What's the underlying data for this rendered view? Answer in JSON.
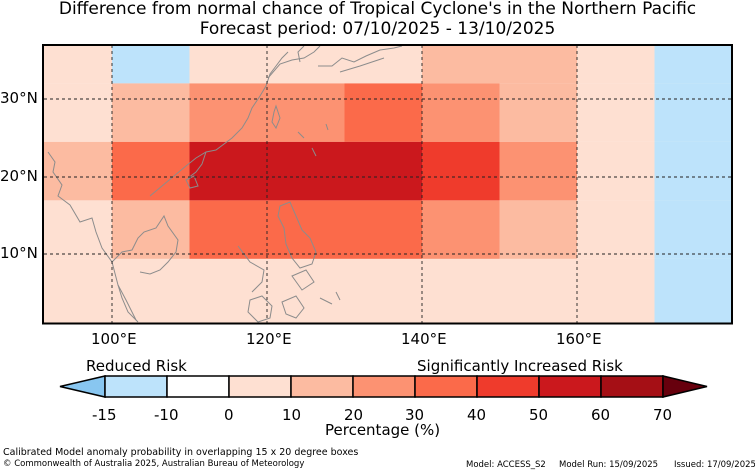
{
  "title": "Difference from normal chance of Tropical Cyclone's in the Northern Pacific",
  "subtitle": "Forecast period: 07/10/2025 - 13/10/2025",
  "axes": {
    "lon_ticks": [
      "100°E",
      "120°E",
      "140°E",
      "160°E"
    ],
    "lat_ticks": [
      "30°N",
      "20°N",
      "10°N"
    ]
  },
  "colorbar": {
    "label_left": "Reduced Risk",
    "label_right": "Significantly Increased Risk",
    "ticks": [
      "-15",
      "-10",
      "0",
      "10",
      "20",
      "30",
      "40",
      "50",
      "60",
      "70"
    ],
    "xlabel": "Percentage (%)",
    "colors": [
      "#bde3fb",
      "#ffffff",
      "#fee0d2",
      "#fcbba1",
      "#fc9272",
      "#fb6a4a",
      "#ef3b2c",
      "#cb181d",
      "#a50f15"
    ],
    "under_color": "#88c6f0",
    "over_color": "#67000d"
  },
  "footer": {
    "description": "Calibrated Model anomaly probability in overlapping 15 x 20 degree boxes",
    "copyright": "© Commonwealth of Australia 2025, Australian Bureau of Meteorology",
    "model": "Model: ACCESS_S2",
    "run": "Model Run: 15/09/2025",
    "issued": "Issued: 17/09/2025"
  },
  "map_grid": {
    "description": "anomaly value (%) per map cell; lon edges / lat edges in degrees",
    "lon_edges": [
      91,
      100,
      110,
      120,
      130,
      140,
      150,
      160,
      170,
      180
    ],
    "lat_edges": [
      37,
      32,
      24.5,
      17,
      9.5,
      1
    ],
    "cells_pct": [
      [
        0,
        -15,
        0,
        5,
        5,
        15,
        15,
        0,
        -15
      ],
      [
        5,
        15,
        25,
        25,
        35,
        25,
        15,
        0,
        -15
      ],
      [
        15,
        35,
        55,
        55,
        55,
        45,
        25,
        0,
        -15
      ],
      [
        5,
        15,
        35,
        35,
        35,
        25,
        15,
        0,
        -15
      ],
      [
        0,
        5,
        5,
        5,
        5,
        5,
        5,
        0,
        -15
      ]
    ]
  }
}
